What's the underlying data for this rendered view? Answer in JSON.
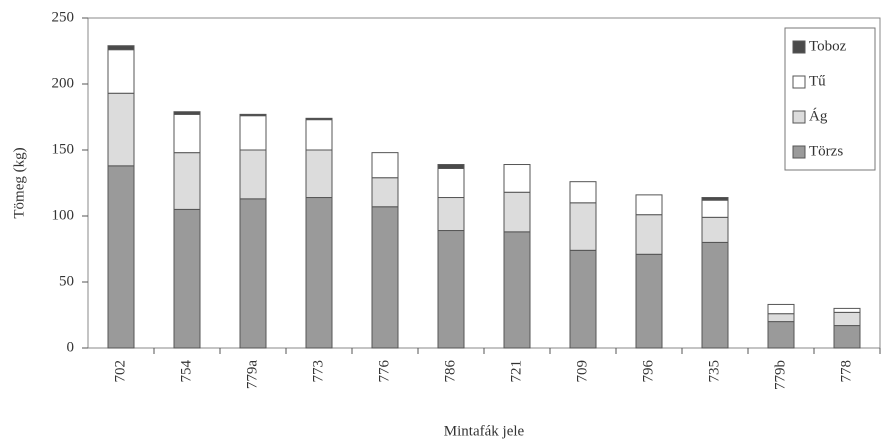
{
  "chart_data": {
    "type": "stacked_bar",
    "x_label": "Mintafák jele",
    "y_label": "Tömeg (kg)",
    "categories": [
      "702",
      "754",
      "779a",
      "773",
      "776",
      "786",
      "721",
      "709",
      "796",
      "735",
      "779b",
      "778"
    ],
    "series": [
      {
        "name": "Törzs",
        "color": "#9a9a9a",
        "values": [
          138,
          105,
          113,
          114,
          107,
          89,
          88,
          74,
          71,
          80,
          20,
          17
        ]
      },
      {
        "name": "Ág",
        "color": "#dcdcdc",
        "values": [
          55,
          43,
          37,
          36,
          22,
          25,
          30,
          36,
          30,
          19,
          6,
          10
        ]
      },
      {
        "name": "Tű",
        "color": "#ffffff",
        "values": [
          33,
          29,
          26,
          23,
          19,
          22,
          21,
          16,
          15,
          13,
          7,
          3
        ]
      },
      {
        "name": "Toboz",
        "color": "#4a4a4a",
        "values": [
          3,
          2,
          1,
          1,
          0,
          3,
          0,
          0,
          0,
          2,
          0,
          0
        ]
      }
    ],
    "ylim": [
      0,
      250
    ],
    "yticks": [
      0,
      50,
      100,
      150,
      200,
      250
    ],
    "grid": false,
    "legend": "upper right"
  }
}
